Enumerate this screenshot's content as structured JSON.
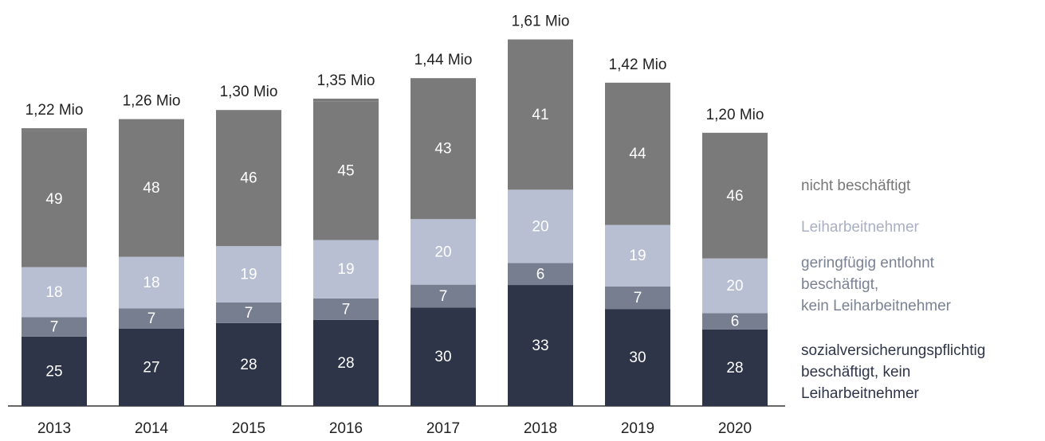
{
  "chart_data": {
    "type": "stacked_bar",
    "categories": [
      "2013",
      "2014",
      "2015",
      "2016",
      "2017",
      "2018",
      "2019",
      "2020"
    ],
    "totals": {
      "values": [
        1.22,
        1.26,
        1.3,
        1.35,
        1.44,
        1.61,
        1.42,
        1.2
      ],
      "value_labels": [
        "1,22 Mio",
        "1,26 Mio",
        "1,30 Mio",
        "1,35 Mio",
        "1,44 Mio",
        "1,61 Mio",
        "1,42 Mio",
        "1,20 Mio"
      ]
    },
    "series": [
      {
        "name": "sozialversicherungspflichtig\nbeschäftigt, kein\nLeiharbeitnehmer",
        "color": "#2e3549",
        "values": [
          25,
          27,
          28,
          28,
          30,
          33,
          30,
          28
        ]
      },
      {
        "name": "geringfügig entlohnt\nbeschäftigt,\nkein Leiharbeitnehmer",
        "color": "#767e90",
        "values": [
          7,
          7,
          7,
          7,
          7,
          6,
          7,
          6
        ]
      },
      {
        "name": "Leiharbeitnehmer",
        "color": "#b8bfd3",
        "values": [
          18,
          18,
          19,
          19,
          20,
          20,
          19,
          20
        ]
      },
      {
        "name": "nicht beschäftigt",
        "color": "#7a7a7a",
        "values": [
          49,
          48,
          46,
          45,
          43,
          41,
          44,
          46
        ]
      }
    ]
  }
}
